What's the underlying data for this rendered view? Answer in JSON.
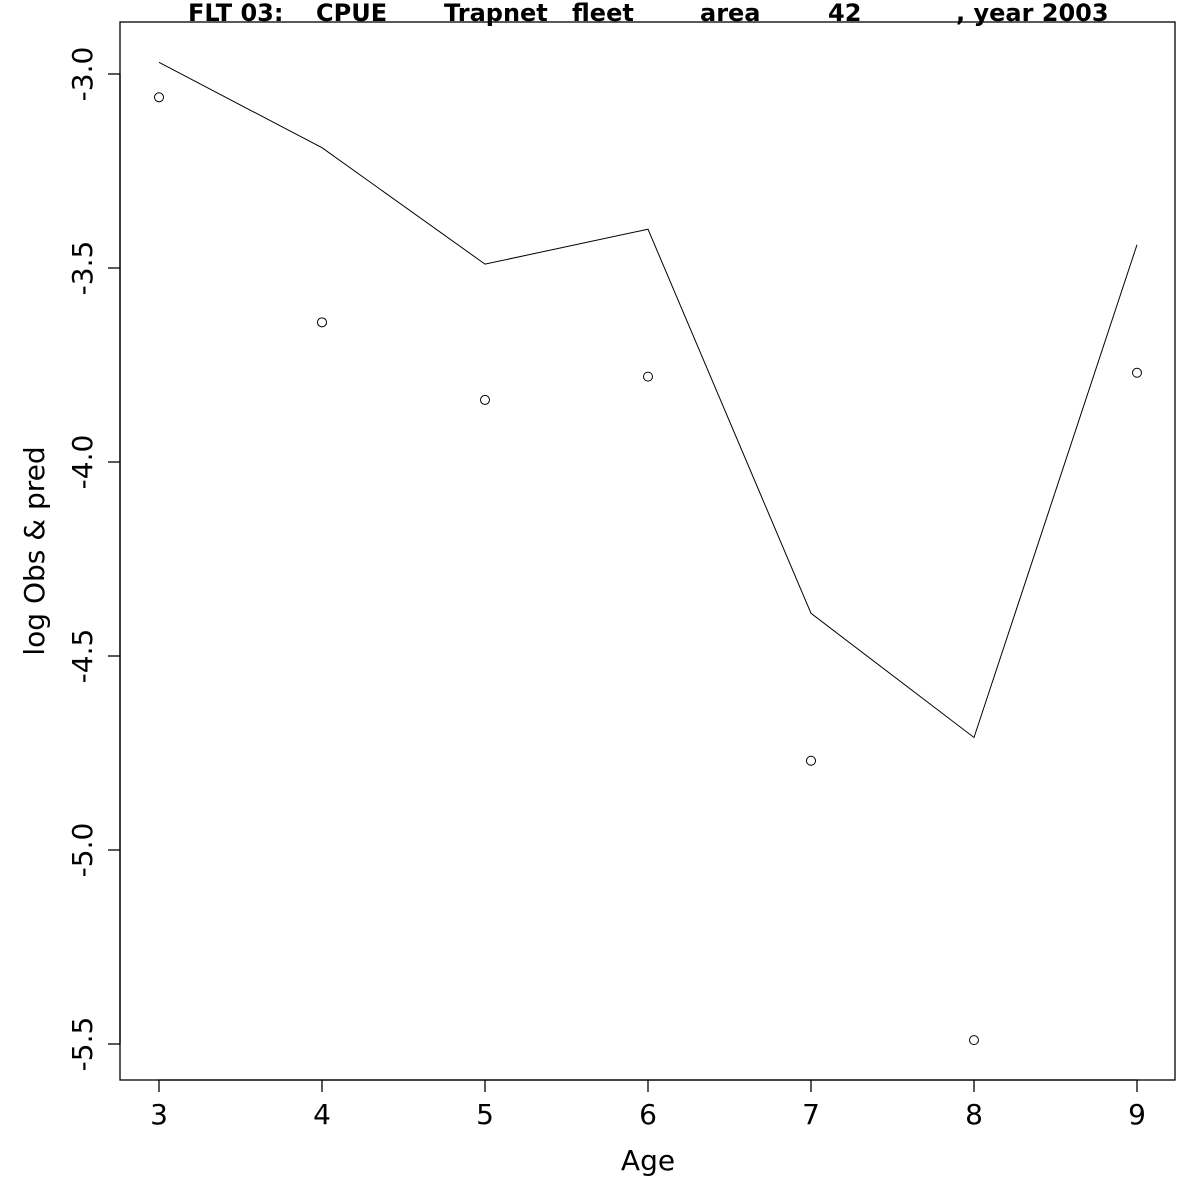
{
  "chart_data": {
    "type": "line",
    "title": "FLT 03:    CPUE       Trapnet   fleet        area        42            , year 2003",
    "title_parts": [
      "FLT 03:",
      "CPUE",
      "Trapnet",
      "fleet",
      "area",
      "42",
      ", year 2003"
    ],
    "xlabel": "Age",
    "ylabel": "log Obs & pred",
    "xlim": [
      2.76,
      9.23
    ],
    "ylim": [
      -5.59,
      -2.87
    ],
    "x_ticks": [
      3,
      4,
      5,
      6,
      7,
      8,
      9
    ],
    "y_ticks": [
      -5.5,
      -5.0,
      -4.5,
      -4.0,
      -3.5,
      -3.0
    ],
    "x_tick_labels": [
      "3",
      "4",
      "5",
      "6",
      "7",
      "8",
      "9"
    ],
    "y_tick_labels": [
      "-5.5",
      "-5.0",
      "-4.5",
      "-4.0",
      "-3.5",
      "-3.0"
    ],
    "grid": false,
    "series": [
      {
        "style": "line",
        "x": [
          3,
          4,
          5,
          6,
          7,
          8,
          9
        ],
        "y": [
          -2.97,
          -3.19,
          -3.49,
          -3.4,
          -4.39,
          -4.71,
          -3.44
        ]
      },
      {
        "style": "points",
        "marker": "open-circle",
        "x": [
          3,
          4,
          5,
          6,
          7,
          8,
          9
        ],
        "y": [
          -3.06,
          -3.64,
          -3.84,
          -3.78,
          -4.77,
          -5.49,
          -3.77
        ]
      }
    ],
    "colors": {
      "line": "#000000",
      "points": "#000000",
      "frame": "#000000"
    }
  }
}
